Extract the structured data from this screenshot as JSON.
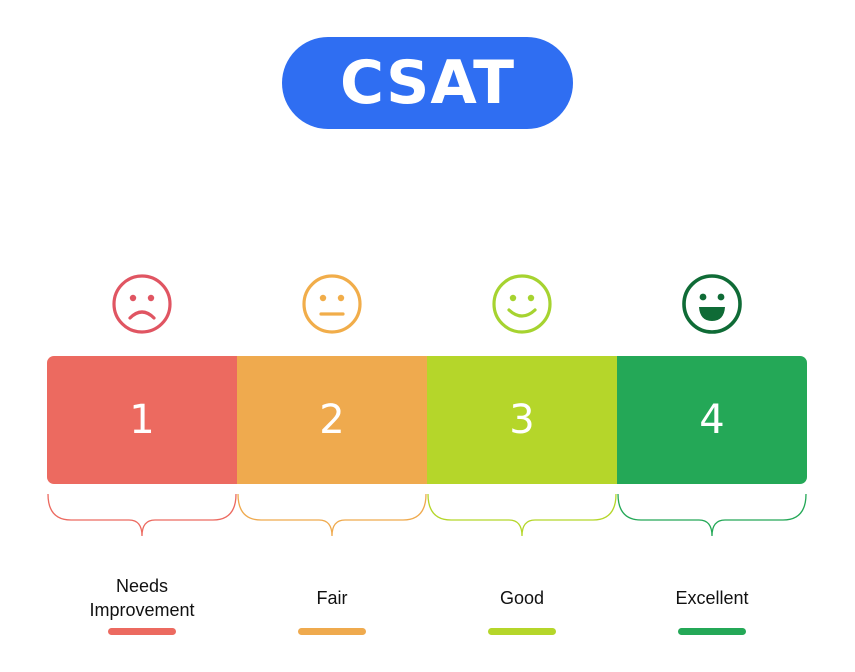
{
  "title": "CSAT",
  "colors": {
    "title_bg": "#2f6ef2",
    "level_1": "#ec6a60",
    "level_2": "#efaa4e",
    "level_3": "#b5d62a",
    "level_4": "#24a857",
    "face_1": "#e05562",
    "face_2": "#f1ad4a",
    "face_3": "#a6d330",
    "face_4": "#0f6b36"
  },
  "levels": [
    {
      "number": "1",
      "label_line1": "Needs",
      "label_line2": "Improvement",
      "face": "sad-face-icon"
    },
    {
      "number": "2",
      "label_line1": "Fair",
      "label_line2": "",
      "face": "neutral-face-icon"
    },
    {
      "number": "3",
      "label_line1": "Good",
      "label_line2": "",
      "face": "smile-face-icon"
    },
    {
      "number": "4",
      "label_line1": "Excellent",
      "label_line2": "",
      "face": "grin-face-icon"
    }
  ]
}
